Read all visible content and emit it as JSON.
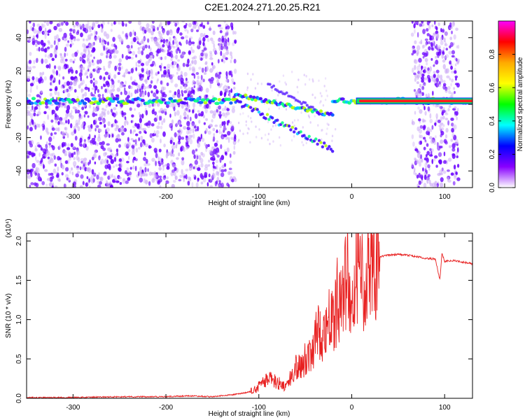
{
  "title": "C2E1.2024.271.20.25.R21",
  "colors": {
    "snr_line": "#e82020",
    "dot_primary": "#6a00ff",
    "dot_faint": "#c9a6f5",
    "colorbar": [
      "#ff00ff",
      "#ff0000",
      "#ffaa00",
      "#ffff00",
      "#00ff00",
      "#00ffff",
      "#0000ff",
      "#8800ff",
      "#ffffff"
    ]
  },
  "chart_data": [
    {
      "type": "heatmap",
      "xlabel": "Height of straight line (km)",
      "ylabel": "Frequency (Hz)",
      "xlim": [
        -350,
        130
      ],
      "ylim": [
        -50,
        50
      ],
      "xticks": [
        -300,
        -200,
        -100,
        0,
        100
      ],
      "yticks": [
        -40,
        -20,
        0,
        20,
        40
      ],
      "colorbar": {
        "label": "Normalized spectral amplitude",
        "range": [
          0,
          1
        ],
        "ticks": [
          0.0,
          0.2,
          0.4,
          0.6,
          0.8
        ]
      },
      "features": {
        "noise_regions_km": [
          [
            -350,
            -125
          ],
          [
            65,
            115
          ]
        ],
        "carrier_segments_km": [
          [
            -350,
            -125
          ],
          [
            -20,
            130
          ]
        ],
        "carrier_freq_hz": 2,
        "strong_carrier_start_km": 5
      }
    },
    {
      "type": "line",
      "xlabel": "Height of straight line (km)",
      "ylabel": "SNR (10 * v/v)",
      "y_multiplier": "(x10⁴)",
      "xlim": [
        -350,
        130
      ],
      "ylim": [
        0,
        2.1
      ],
      "xticks": [
        -300,
        -200,
        -100,
        0,
        100
      ],
      "yticks": [
        0.0,
        0.5,
        1.0,
        1.5,
        2.0
      ],
      "series": [
        {
          "x": [
            -350,
            -300,
            -250,
            -200,
            -175,
            -150,
            -125,
            -110,
            -100,
            -90,
            -80,
            -70,
            -60,
            -50,
            -40,
            -35,
            -30,
            -25,
            -20,
            -15,
            -10,
            -5,
            0,
            5,
            10,
            15,
            20,
            30,
            40,
            50,
            60,
            70,
            80,
            90,
            95,
            97,
            100,
            110,
            120,
            130
          ],
          "y": [
            0.01,
            0.01,
            0.02,
            0.02,
            0.03,
            0.02,
            0.05,
            0.08,
            0.15,
            0.25,
            0.2,
            0.15,
            0.4,
            0.5,
            0.7,
            0.9,
            0.8,
            1.1,
            0.9,
            1.3,
            1.2,
            1.6,
            0.9,
            1.8,
            1.4,
            1.65,
            1.75,
            1.8,
            1.82,
            1.83,
            1.82,
            1.8,
            1.78,
            1.77,
            1.5,
            1.85,
            1.74,
            1.75,
            1.73,
            1.71
          ]
        }
      ]
    }
  ]
}
